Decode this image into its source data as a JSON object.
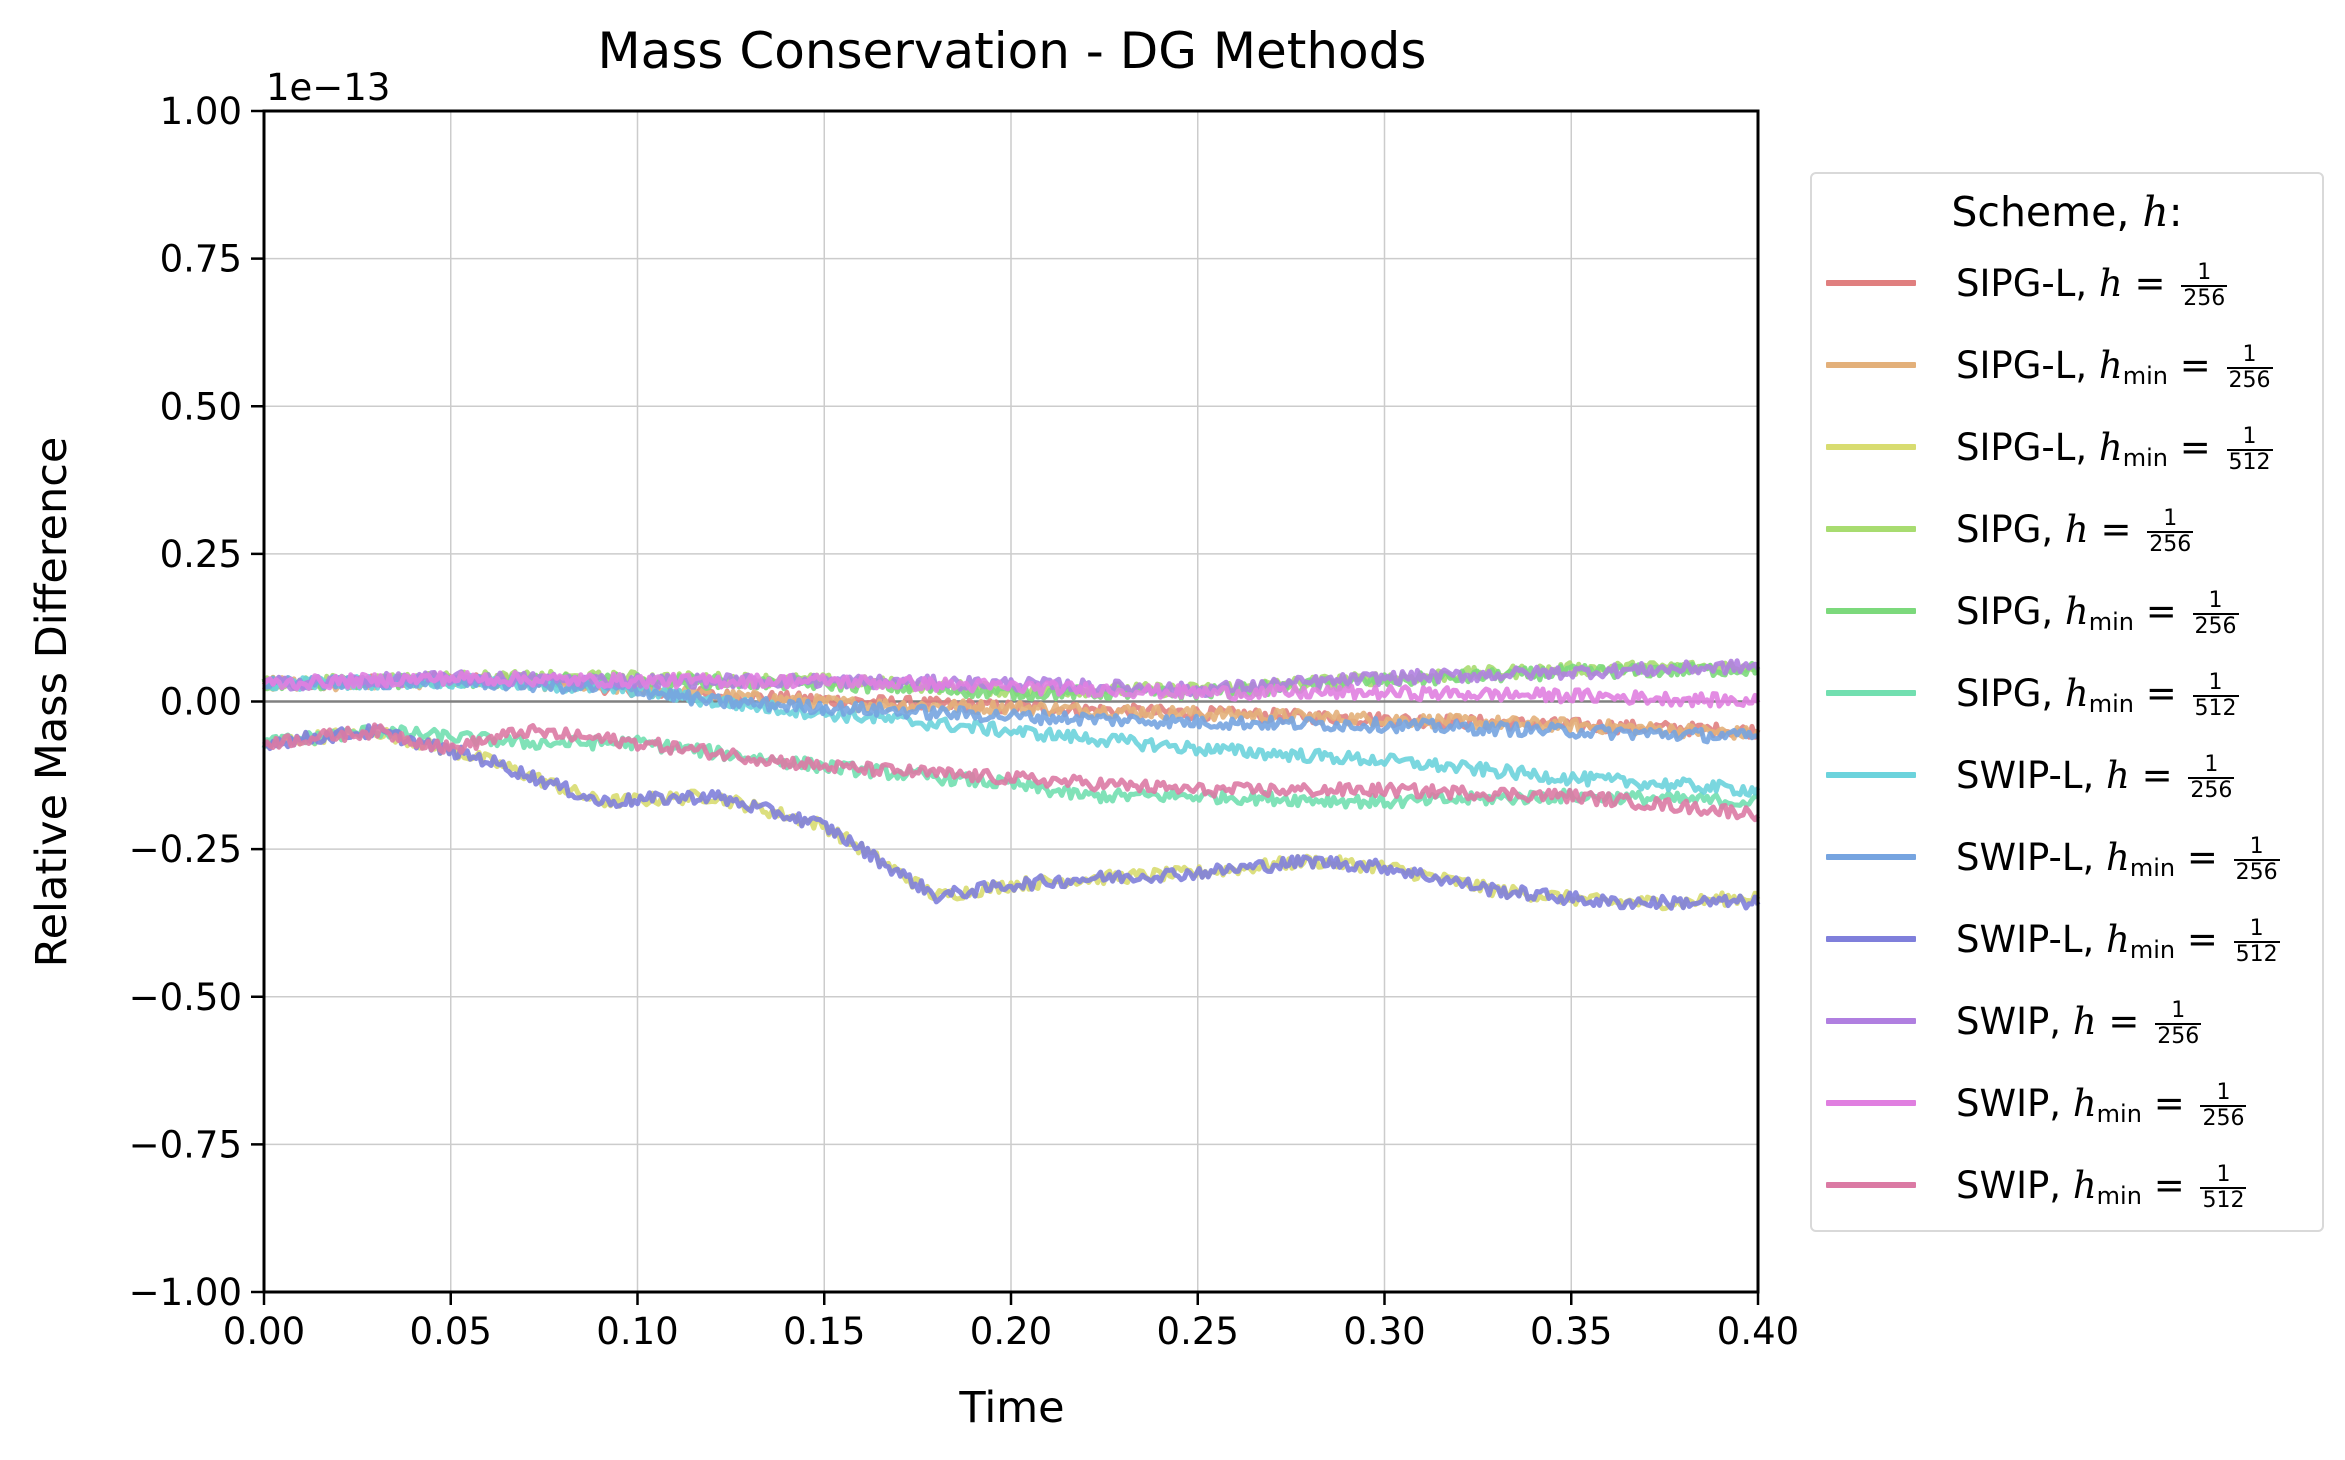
{
  "chart_data": {
    "type": "line",
    "title": "Mass Conservation - DG Methods",
    "xlabel": "Time",
    "ylabel": "Relative Mass Difference",
    "offset_text": "1e−13",
    "xlim": [
      0.0,
      0.4
    ],
    "ylim": [
      -1.0,
      1.0
    ],
    "xticks": [
      "0.00",
      "0.05",
      "0.10",
      "0.15",
      "0.20",
      "0.25",
      "0.30",
      "0.35",
      "0.40"
    ],
    "yticks": [
      "1.00",
      "0.75",
      "0.50",
      "0.25",
      "0.00",
      "−0.25",
      "−0.50",
      "−0.75",
      "−1.00"
    ],
    "grid": true,
    "legend": {
      "title": "Scheme, ",
      "title_var": "h",
      "title_suffix": ":",
      "placement": "outside-right"
    },
    "series": [
      {
        "name": "SIPG-L, h = 1/256",
        "scheme": "SIPG-L, ",
        "var": "h",
        "sub": "",
        "den": "256",
        "color": "#e07f7f",
        "x": [
          0,
          0.02,
          0.05,
          0.08,
          0.12,
          0.16,
          0.2,
          0.25,
          0.3,
          0.35,
          0.4
        ],
        "y": [
          0.03,
          0.03,
          0.04,
          0.03,
          0.01,
          0.0,
          -0.01,
          -0.02,
          -0.03,
          -0.04,
          -0.05
        ]
      },
      {
        "name": "SIPG-L, h_min = 1/256",
        "scheme": "SIPG-L, ",
        "var": "h",
        "sub": "min",
        "den": "256",
        "color": "#e3b07a",
        "x": [
          0,
          0.02,
          0.05,
          0.08,
          0.12,
          0.16,
          0.2,
          0.25,
          0.3,
          0.35,
          0.4
        ],
        "y": [
          0.03,
          0.03,
          0.035,
          0.03,
          0.01,
          -0.005,
          -0.01,
          -0.02,
          -0.03,
          -0.04,
          -0.055
        ]
      },
      {
        "name": "SIPG-L, h_min = 1/512",
        "scheme": "SIPG-L, ",
        "var": "h",
        "sub": "min",
        "den": "512",
        "color": "#d8dc70",
        "x": [
          0,
          0.03,
          0.06,
          0.09,
          0.12,
          0.15,
          0.17,
          0.18,
          0.2,
          0.22,
          0.25,
          0.28,
          0.3,
          0.33,
          0.36,
          0.38,
          0.4
        ],
        "y": [
          -0.07,
          -0.05,
          -0.1,
          -0.17,
          -0.16,
          -0.21,
          -0.29,
          -0.33,
          -0.31,
          -0.3,
          -0.29,
          -0.27,
          -0.28,
          -0.32,
          -0.34,
          -0.34,
          -0.33
        ]
      },
      {
        "name": "SIPG, h = 1/256",
        "scheme": "SIPG, ",
        "var": "h",
        "sub": "",
        "den": "256",
        "color": "#a8dc70",
        "x": [
          0,
          0.05,
          0.1,
          0.15,
          0.2,
          0.25,
          0.3,
          0.35,
          0.4
        ],
        "y": [
          0.03,
          0.04,
          0.04,
          0.035,
          0.02,
          0.02,
          0.04,
          0.055,
          0.06
        ]
      },
      {
        "name": "SIPG, h_min = 1/256",
        "scheme": "SIPG, ",
        "var": "h",
        "sub": "min",
        "den": "256",
        "color": "#7cd97c",
        "x": [
          0,
          0.05,
          0.1,
          0.15,
          0.2,
          0.25,
          0.3,
          0.35,
          0.4
        ],
        "y": [
          0.03,
          0.035,
          0.035,
          0.03,
          0.015,
          0.015,
          0.035,
          0.05,
          0.055
        ]
      },
      {
        "name": "SIPG, h_min = 1/512",
        "scheme": "SIPG, ",
        "var": "h",
        "sub": "min",
        "den": "512",
        "color": "#72dfb0",
        "x": [
          0,
          0.03,
          0.07,
          0.1,
          0.15,
          0.2,
          0.22,
          0.25,
          0.3,
          0.35,
          0.4
        ],
        "y": [
          -0.07,
          -0.05,
          -0.07,
          -0.07,
          -0.11,
          -0.14,
          -0.16,
          -0.16,
          -0.17,
          -0.16,
          -0.17
        ]
      },
      {
        "name": "SWIP-L, h = 1/256",
        "scheme": "SWIP-L, ",
        "var": "h",
        "sub": "",
        "den": "256",
        "color": "#6cd3dc",
        "x": [
          0,
          0.05,
          0.1,
          0.12,
          0.15,
          0.2,
          0.25,
          0.3,
          0.35,
          0.4
        ],
        "y": [
          0.03,
          0.035,
          0.02,
          0.0,
          -0.02,
          -0.05,
          -0.08,
          -0.1,
          -0.13,
          -0.15
        ]
      },
      {
        "name": "SWIP-L, h_min = 1/256",
        "scheme": "SWIP-L, ",
        "var": "h",
        "sub": "min",
        "den": "256",
        "color": "#76a4e0",
        "x": [
          0,
          0.05,
          0.1,
          0.12,
          0.15,
          0.2,
          0.25,
          0.3,
          0.35,
          0.4
        ],
        "y": [
          0.03,
          0.035,
          0.02,
          0.0,
          -0.01,
          -0.025,
          -0.035,
          -0.04,
          -0.05,
          -0.06
        ]
      },
      {
        "name": "SWIP-L, h_min = 1/512",
        "scheme": "SWIP-L, ",
        "var": "h",
        "sub": "min",
        "den": "512",
        "color": "#7f7fdb",
        "x": [
          0,
          0.03,
          0.06,
          0.09,
          0.12,
          0.15,
          0.17,
          0.18,
          0.2,
          0.22,
          0.25,
          0.28,
          0.3,
          0.33,
          0.36,
          0.38,
          0.4
        ],
        "y": [
          -0.07,
          -0.05,
          -0.1,
          -0.17,
          -0.16,
          -0.21,
          -0.29,
          -0.33,
          -0.31,
          -0.3,
          -0.29,
          -0.27,
          -0.28,
          -0.32,
          -0.34,
          -0.34,
          -0.34
        ]
      },
      {
        "name": "SWIP, h = 1/256",
        "scheme": "SWIP, ",
        "var": "h",
        "sub": "",
        "den": "256",
        "color": "#b07fe0",
        "x": [
          0,
          0.05,
          0.1,
          0.15,
          0.2,
          0.25,
          0.3,
          0.35,
          0.4
        ],
        "y": [
          0.03,
          0.04,
          0.035,
          0.035,
          0.03,
          0.02,
          0.04,
          0.05,
          0.06
        ]
      },
      {
        "name": "SWIP, h_min = 1/256",
        "scheme": "SWIP, ",
        "var": "h",
        "sub": "min",
        "den": "256",
        "color": "#e07fe0",
        "x": [
          0,
          0.05,
          0.1,
          0.15,
          0.2,
          0.25,
          0.3,
          0.35,
          0.4
        ],
        "y": [
          0.03,
          0.04,
          0.035,
          0.035,
          0.025,
          0.015,
          0.015,
          0.01,
          0.0
        ]
      },
      {
        "name": "SWIP, h_min = 1/512",
        "scheme": "SWIP, ",
        "var": "h",
        "sub": "min",
        "den": "512",
        "color": "#db7aa4",
        "x": [
          0,
          0.03,
          0.05,
          0.07,
          0.1,
          0.15,
          0.2,
          0.25,
          0.3,
          0.35,
          0.4
        ],
        "y": [
          -0.07,
          -0.05,
          -0.08,
          -0.05,
          -0.07,
          -0.11,
          -0.13,
          -0.15,
          -0.15,
          -0.16,
          -0.19
        ]
      }
    ]
  }
}
